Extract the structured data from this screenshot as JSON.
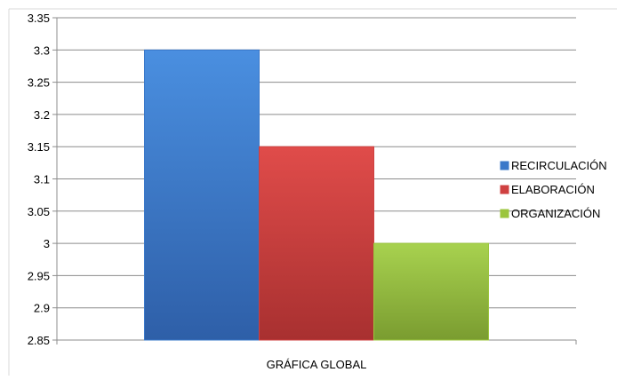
{
  "chart_data": {
    "type": "bar",
    "categories": [
      "GRÁFICA GLOBAL"
    ],
    "series": [
      {
        "name": "RECIRCULACIÓN",
        "values": [
          3.3
        ],
        "color": "#3a78c9"
      },
      {
        "name": "ELABORACIÓN",
        "values": [
          3.15
        ],
        "color": "#cf4040"
      },
      {
        "name": "ORGANIZACIÓN",
        "values": [
          3.0
        ],
        "color": "#9bc53d"
      }
    ],
    "ylim": [
      2.85,
      3.35
    ],
    "yticks": [
      "2.85",
      "2.9",
      "2.95",
      "3",
      "3.05",
      "3.1",
      "3.15",
      "3.2",
      "3.25",
      "3.3",
      "3.35"
    ],
    "grid": true,
    "legend": "right",
    "title": "",
    "xlabel": "",
    "ylabel": ""
  }
}
